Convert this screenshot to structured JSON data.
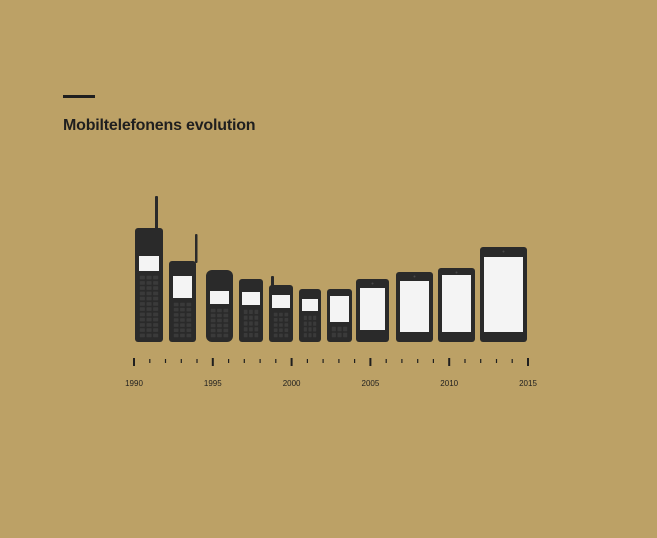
{
  "header": {
    "title": "Mobiltelefonens evolution"
  },
  "colors": {
    "background": "#bca166",
    "phone_body": "#2a2a2a",
    "screen": "#f4f4f4",
    "text": "#1f1f1f"
  },
  "timeline": {
    "start_year": 1990,
    "end_year": 2015,
    "labels": [
      "1990",
      "1995",
      "2000",
      "2005",
      "2010",
      "2015"
    ]
  },
  "phones": [
    {
      "era": "brick",
      "antenna": "tall"
    },
    {
      "era": "brick",
      "antenna": "tall"
    },
    {
      "era": "candybar",
      "antenna": "none"
    },
    {
      "era": "candybar",
      "antenna": "none"
    },
    {
      "era": "candybar",
      "antenna": "stub"
    },
    {
      "era": "candybar",
      "antenna": "none"
    },
    {
      "era": "candybar",
      "antenna": "none"
    },
    {
      "era": "smartphone",
      "antenna": "none"
    },
    {
      "era": "smartphone",
      "antenna": "none"
    },
    {
      "era": "smartphone",
      "antenna": "none"
    },
    {
      "era": "smartphone",
      "antenna": "none"
    }
  ]
}
